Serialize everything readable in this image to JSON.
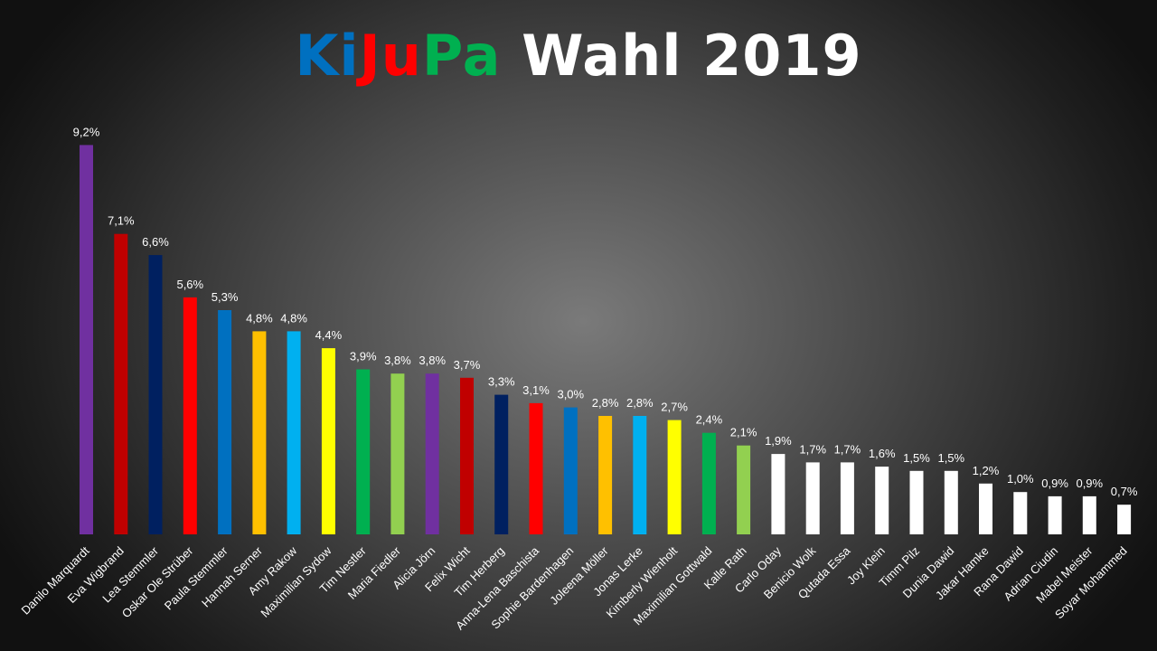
{
  "title": {
    "parts": [
      {
        "text": "Ki",
        "color": "#0070c0"
      },
      {
        "text": "Ju",
        "color": "#ff0000"
      },
      {
        "text": "Pa",
        "color": "#00b050"
      },
      {
        "text": " Wahl 2019",
        "color": "#ffffff"
      }
    ]
  },
  "chart_data": {
    "type": "bar",
    "title": "KiJuPa Wahl 2019",
    "xlabel": "",
    "ylabel": "",
    "ylim": [
      0,
      10
    ],
    "grid": false,
    "legend": "none",
    "value_labels": [
      "9,2%",
      "7,1%",
      "6,6%",
      "5,6%",
      "5,3%",
      "4,8%",
      "4,8%",
      "4,4%",
      "3,9%",
      "3,8%",
      "3,8%",
      "3,7%",
      "3,3%",
      "3,1%",
      "3,0%",
      "2,8%",
      "2,8%",
      "2,7%",
      "2,4%",
      "2,1%",
      "1,9%",
      "1,7%",
      "1,7%",
      "1,6%",
      "1,5%",
      "1,5%",
      "1,2%",
      "1,0%",
      "0,9%",
      "0,9%",
      "0,7%"
    ],
    "categories": [
      "Danilo Marquardt",
      "Eva Wigbrand",
      "Lea Stemmler",
      "Oskar Ole Strüber",
      "Paula Stemmler",
      "Hannah Serner",
      "Amy Rakow",
      "Maximilian Sydow",
      "Tim Nestler",
      "Maria Fiedler",
      "Alicia Jörn",
      "Felix Wicht",
      "Tim Herberg",
      "Anna-Lena Baschista",
      "Sophie Bardenhagen",
      "Joleena Möller",
      "Jonas Lerke",
      "Kimberly Wienholt",
      "Maximilian Gottwald",
      "Kalle Rath",
      "Carlo Oday",
      "Benicio Wolk",
      "Qutada Essa",
      "Joy Klein",
      "Timm Pilz",
      "Dunia Dawid",
      "Jakar Hamke",
      "Rana Dawid",
      "Adrian Ciudin",
      "Mabel Meister",
      "Soyar Mohammed"
    ],
    "values": [
      9.2,
      7.1,
      6.6,
      5.6,
      5.3,
      4.8,
      4.8,
      4.4,
      3.9,
      3.8,
      3.8,
      3.7,
      3.3,
      3.1,
      3.0,
      2.8,
      2.8,
      2.7,
      2.4,
      2.1,
      1.9,
      1.7,
      1.7,
      1.6,
      1.5,
      1.5,
      1.2,
      1.0,
      0.9,
      0.9,
      0.7
    ],
    "colors": [
      "#7030a0",
      "#c00000",
      "#002060",
      "#ff0000",
      "#0070c0",
      "#ffc000",
      "#00b0f0",
      "#ffff00",
      "#00b050",
      "#92d050",
      "#7030a0",
      "#c00000",
      "#002060",
      "#ff0000",
      "#0070c0",
      "#ffc000",
      "#00b0f0",
      "#ffff00",
      "#00b050",
      "#92d050",
      "#ffffff",
      "#ffffff",
      "#ffffff",
      "#ffffff",
      "#ffffff",
      "#ffffff",
      "#ffffff",
      "#ffffff",
      "#ffffff",
      "#ffffff",
      "#ffffff"
    ]
  }
}
